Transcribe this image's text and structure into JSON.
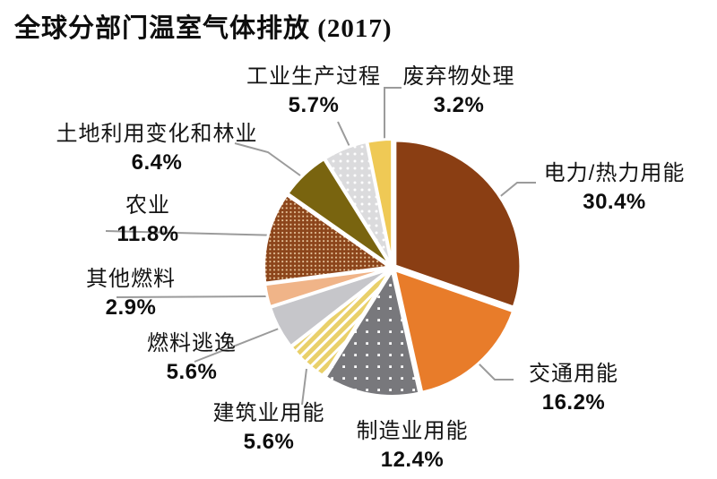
{
  "title": "全球分部门温室气体排放 (2017)",
  "colors": {
    "background": "#ffffff",
    "slice_gap": "#ffffff",
    "leader_line": "#9b9b9b",
    "text": "#111111"
  },
  "chart_data": {
    "type": "pie",
    "title": "全球分部门温室气体排放 (2017)",
    "direction": "clockwise",
    "start_angle_deg": 0,
    "total_percent": 100.2,
    "legend_position": "outside-callouts",
    "slices": [
      {
        "label": "电力/热力用能",
        "value": 30.4,
        "pct_label": "30.4%",
        "fill": "#8A3E13",
        "texture": "solid"
      },
      {
        "label": "交通用能",
        "value": 16.2,
        "pct_label": "16.2%",
        "fill": "#E87C2A",
        "texture": "solid"
      },
      {
        "label": "制造业用能",
        "value": 12.4,
        "pct_label": "12.4%",
        "fill": "pattern:gray-dots",
        "texture": "white dots on gray"
      },
      {
        "label": "建筑业用能",
        "value": 5.6,
        "pct_label": "5.6%",
        "fill": "pattern:yellow-stripes",
        "texture": "yellow/white diagonal stripes"
      },
      {
        "label": "燃料逃逸",
        "value": 5.6,
        "pct_label": "5.6%",
        "fill": "#C6C6CA",
        "texture": "solid"
      },
      {
        "label": "其他燃料",
        "value": 2.9,
        "pct_label": "2.9%",
        "fill": "#F0B488",
        "texture": "solid"
      },
      {
        "label": "农业",
        "value": 11.8,
        "pct_label": "11.8%",
        "fill": "pattern:brown-dots",
        "texture": "cream dots on brown"
      },
      {
        "label": "土地利用变化和林业",
        "value": 6.4,
        "pct_label": "6.4%",
        "fill": "#79640F",
        "texture": "solid"
      },
      {
        "label": "工业生产过程",
        "value": 5.7,
        "pct_label": "5.7%",
        "fill": "pattern:light-dots",
        "texture": "white dots on light gray"
      },
      {
        "label": "废弃物处理",
        "value": 3.2,
        "pct_label": "3.2%",
        "fill": "#EFC955",
        "texture": "solid"
      }
    ]
  }
}
